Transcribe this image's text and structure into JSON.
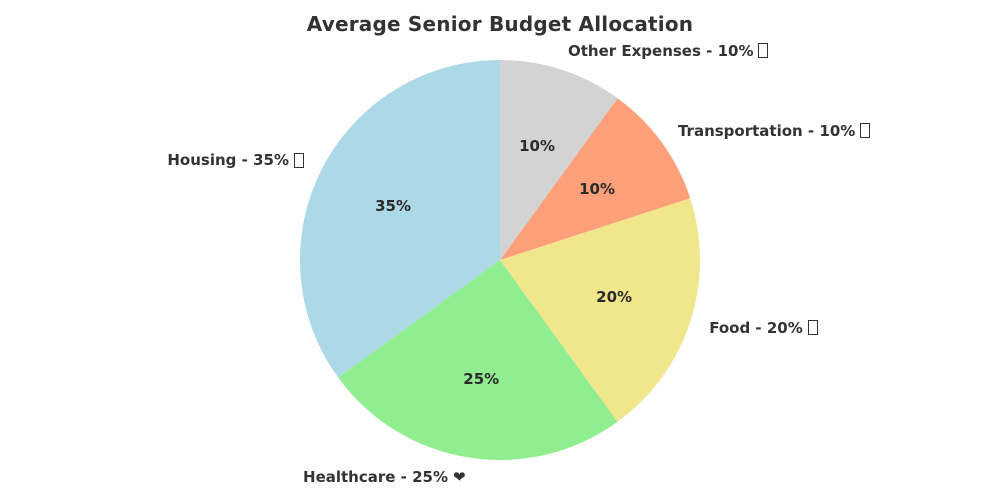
{
  "title": "Average Senior Budget Allocation",
  "colors": {
    "background": "#ffffff",
    "title_text": "#333333",
    "label_text": "#333333",
    "pct_text": "#2b2b2b"
  },
  "chart_data": {
    "type": "pie",
    "title": "Average Senior Budget Allocation",
    "start_angle_deg": 90,
    "direction": "counterclockwise",
    "legend_position": "none",
    "slices": [
      {
        "label": "Housing",
        "value": 35,
        "pct_label": "35%",
        "outer_label": "Housing - 35%",
        "icon": "missing-glyph",
        "color": "#ADD8E6"
      },
      {
        "label": "Healthcare",
        "value": 25,
        "pct_label": "25%",
        "outer_label": "Healthcare - 25%",
        "icon": "heart",
        "color": "#90EE90"
      },
      {
        "label": "Food",
        "value": 20,
        "pct_label": "20%",
        "outer_label": "Food - 20%",
        "icon": "missing-glyph",
        "color": "#F0E68C"
      },
      {
        "label": "Transportation",
        "value": 10,
        "pct_label": "10%",
        "outer_label": "Transportation - 10%",
        "icon": "missing-glyph",
        "color": "#FFA07A"
      },
      {
        "label": "Other Expenses",
        "value": 10,
        "pct_label": "10%",
        "outer_label": "Other Expenses - 10%",
        "icon": "missing-glyph",
        "color": "#D3D3D3"
      }
    ],
    "icon_glyphs": {
      "heart": "❤"
    }
  }
}
